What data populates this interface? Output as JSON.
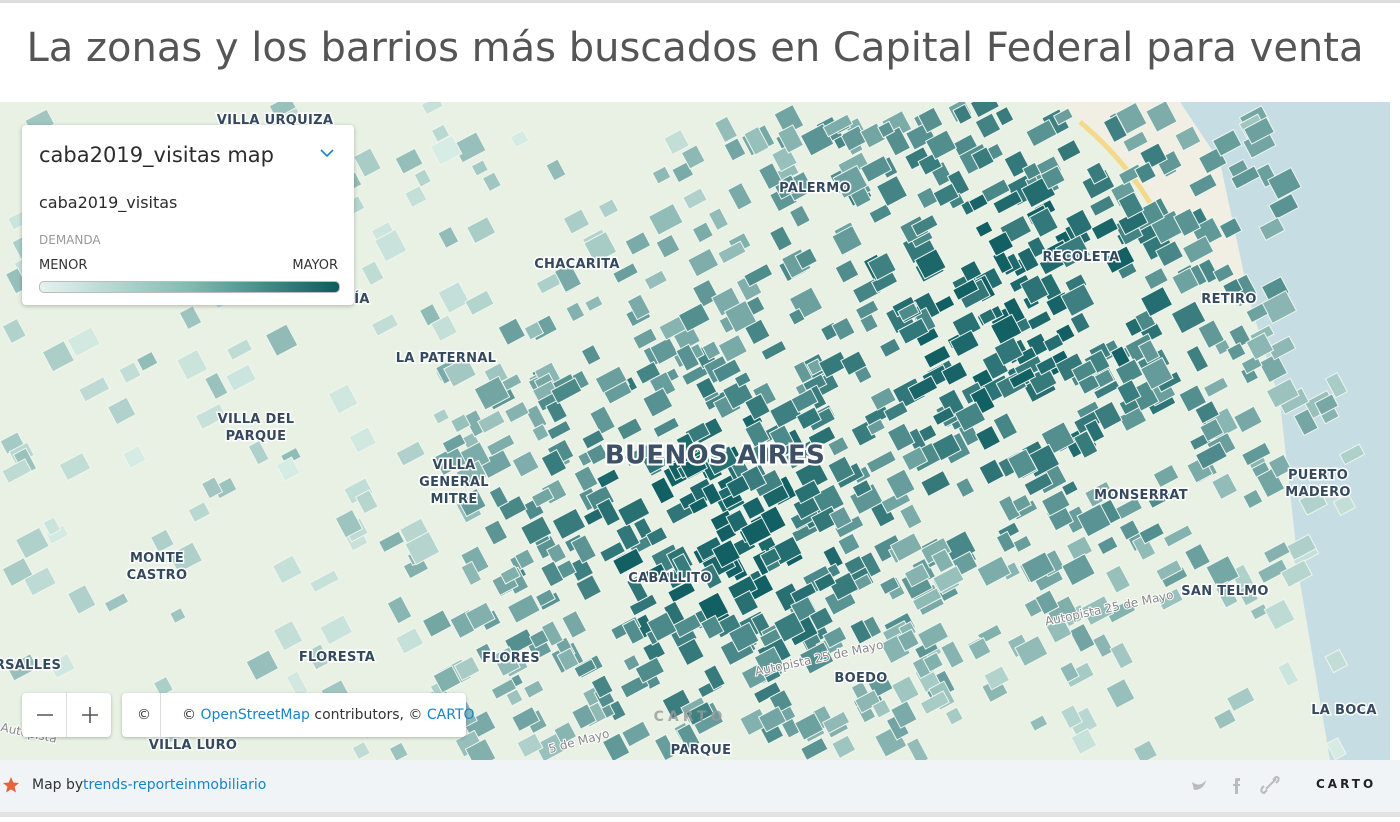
{
  "header": {
    "title": "La zonas y los barrios más buscados en Capital Federal para venta"
  },
  "legend": {
    "title": "caba2019_visitas map",
    "layer": "caba2019_visitas",
    "variable": "DEMANDA",
    "min_label": "MENOR",
    "max_label": "MAYOR"
  },
  "map": {
    "labels": [
      {
        "lines": [
          "VILLA URQUIZA"
        ]
      },
      {
        "lines": [
          "PALERMO"
        ]
      },
      {
        "lines": [
          "CHACARITA"
        ]
      },
      {
        "lines": [
          "RECOLETA"
        ]
      },
      {
        "lines": [
          "RETIRO"
        ]
      },
      {
        "lines": [
          "ÍA"
        ]
      },
      {
        "lines": [
          "LA PATERNAL"
        ]
      },
      {
        "lines": [
          "VILLA DEL",
          "PARQUE"
        ]
      },
      {
        "lines": [
          "VILLA",
          "GENERAL",
          "MITRE"
        ]
      },
      {
        "lines": [
          "PUERTO",
          "MADERO"
        ]
      },
      {
        "lines": [
          "MONSERRAT"
        ]
      },
      {
        "lines": [
          "MONTE",
          "CASTRO"
        ]
      },
      {
        "lines": [
          "CABALLITO"
        ]
      },
      {
        "lines": [
          "SAN TELMO"
        ]
      },
      {
        "lines": [
          "RSALLES"
        ]
      },
      {
        "lines": [
          "FLORESTA"
        ]
      },
      {
        "lines": [
          "FLORES"
        ]
      },
      {
        "lines": [
          "BOEDO"
        ]
      },
      {
        "lines": [
          "LA BOCA"
        ]
      },
      {
        "lines": [
          "VILLA LURO"
        ]
      },
      {
        "lines": [
          "PARQUE"
        ]
      }
    ],
    "city": "BUENOS AIRES",
    "roads": [
      "Autopista 25 de Mayo",
      "Autopista 25 de Mayo",
      "Autopista",
      "5 de Mayo"
    ],
    "watermark": "CARTO"
  },
  "attribution": {
    "icon": "©",
    "prefix": "©",
    "osm": "OpenStreetMap",
    "middle": "contributors, ©",
    "carto": "CARTO"
  },
  "footer": {
    "prefix": "Map by",
    "author": "trends-reporteinmobiliario",
    "logo": "CARTO"
  }
}
